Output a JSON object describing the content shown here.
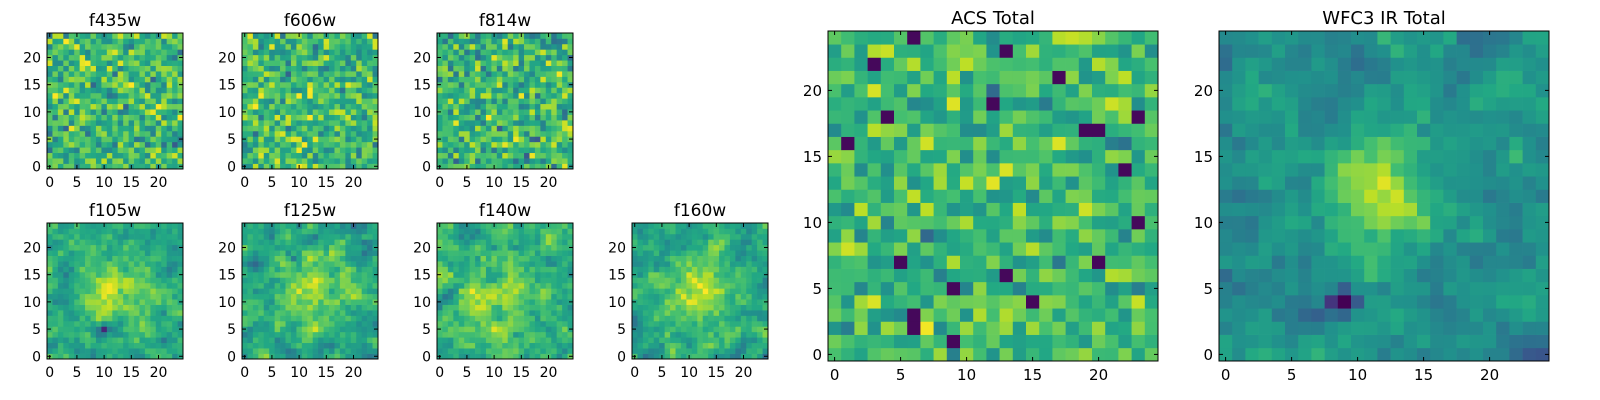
{
  "figure": {
    "colormap": "viridis",
    "background": "#ffffff"
  },
  "chart_data": [
    {
      "type": "heatmap",
      "title": "f435w",
      "grid_size": 25,
      "xlim": [
        -0.5,
        24.5
      ],
      "ylim": [
        -0.5,
        24.5
      ],
      "xticks": [
        0,
        5,
        10,
        15,
        20
      ],
      "yticks": [
        0,
        5,
        10,
        15,
        20
      ],
      "value_range": [
        0,
        1
      ],
      "pattern": {
        "kind": "noise",
        "seed": 11,
        "mean": 0.68,
        "spread": 0.24,
        "blob_strength": 0.0
      }
    },
    {
      "type": "heatmap",
      "title": "f606w",
      "grid_size": 25,
      "xlim": [
        -0.5,
        24.5
      ],
      "ylim": [
        -0.5,
        24.5
      ],
      "xticks": [
        0,
        5,
        10,
        15,
        20
      ],
      "yticks": [
        0,
        5,
        10,
        15,
        20
      ],
      "value_range": [
        0,
        1
      ],
      "pattern": {
        "kind": "noise",
        "seed": 23,
        "mean": 0.68,
        "spread": 0.24,
        "blob_strength": 0.0
      }
    },
    {
      "type": "heatmap",
      "title": "f814w",
      "grid_size": 25,
      "xlim": [
        -0.5,
        24.5
      ],
      "ylim": [
        -0.5,
        24.5
      ],
      "xticks": [
        0,
        5,
        10,
        15,
        20
      ],
      "yticks": [
        0,
        5,
        10,
        15,
        20
      ],
      "value_range": [
        0,
        1
      ],
      "pattern": {
        "kind": "noise",
        "seed": 37,
        "mean": 0.66,
        "spread": 0.25,
        "blob_strength": 0.0
      }
    },
    {
      "type": "heatmap",
      "title": "f105w",
      "grid_size": 25,
      "xlim": [
        -0.5,
        24.5
      ],
      "ylim": [
        -0.5,
        24.5
      ],
      "xticks": [
        0,
        5,
        10,
        15,
        20
      ],
      "yticks": [
        0,
        5,
        10,
        15,
        20
      ],
      "value_range": [
        0,
        1
      ],
      "pattern": {
        "kind": "smooth",
        "seed": 41,
        "mean": 0.6,
        "spread": 0.2,
        "blob_strength": 0.3,
        "blob_center": [
          12,
          12
        ],
        "blob_sigma": 4,
        "dark_spot": [
          10,
          5
        ]
      }
    },
    {
      "type": "heatmap",
      "title": "f125w",
      "grid_size": 25,
      "xlim": [
        -0.5,
        24.5
      ],
      "ylim": [
        -0.5,
        24.5
      ],
      "xticks": [
        0,
        5,
        10,
        15,
        20
      ],
      "yticks": [
        0,
        5,
        10,
        15,
        20
      ],
      "value_range": [
        0,
        1
      ],
      "pattern": {
        "kind": "smooth",
        "seed": 53,
        "mean": 0.6,
        "spread": 0.22,
        "blob_strength": 0.25,
        "blob_center": [
          12,
          11
        ],
        "blob_sigma": 4
      }
    },
    {
      "type": "heatmap",
      "title": "f140w",
      "grid_size": 25,
      "xlim": [
        -0.5,
        24.5
      ],
      "ylim": [
        -0.5,
        24.5
      ],
      "xticks": [
        0,
        5,
        10,
        15,
        20
      ],
      "yticks": [
        0,
        5,
        10,
        15,
        20
      ],
      "value_range": [
        0,
        1
      ],
      "pattern": {
        "kind": "smooth",
        "seed": 67,
        "mean": 0.62,
        "spread": 0.22,
        "blob_strength": 0.22,
        "blob_center": [
          10,
          10
        ],
        "blob_sigma": 5
      }
    },
    {
      "type": "heatmap",
      "title": "f160w",
      "grid_size": 25,
      "xlim": [
        -0.5,
        24.5
      ],
      "ylim": [
        -0.5,
        24.5
      ],
      "xticks": [
        0,
        5,
        10,
        15,
        20
      ],
      "yticks": [
        0,
        5,
        10,
        15,
        20
      ],
      "value_range": [
        0,
        1
      ],
      "pattern": {
        "kind": "smooth",
        "seed": 79,
        "mean": 0.6,
        "spread": 0.2,
        "blob_strength": 0.3,
        "blob_center": [
          12,
          12
        ],
        "blob_sigma": 4
      }
    },
    {
      "type": "heatmap",
      "title": "ACS Total",
      "grid_size": 25,
      "xlim": [
        -0.5,
        24.5
      ],
      "ylim": [
        -0.5,
        24.5
      ],
      "xticks": [
        0,
        5,
        10,
        15,
        20
      ],
      "yticks": [
        0,
        5,
        10,
        15,
        20
      ],
      "value_range": [
        0,
        1
      ],
      "pattern": {
        "kind": "noise",
        "seed": 97,
        "mean": 0.68,
        "spread": 0.2,
        "blob_strength": 0.0,
        "dark_frac": 0.035
      }
    },
    {
      "type": "heatmap",
      "title": "WFC3 IR Total",
      "grid_size": 25,
      "xlim": [
        -0.5,
        24.5
      ],
      "ylim": [
        -0.5,
        24.5
      ],
      "xticks": [
        0,
        5,
        10,
        15,
        20
      ],
      "yticks": [
        0,
        5,
        10,
        15,
        20
      ],
      "value_range": [
        0,
        1
      ],
      "pattern": {
        "kind": "smooth",
        "seed": 113,
        "mean": 0.5,
        "spread": 0.16,
        "blob_strength": 0.42,
        "blob_center": [
          12,
          12
        ],
        "blob_sigma": 2.6,
        "dark_spot": [
          9,
          4
        ]
      }
    }
  ]
}
